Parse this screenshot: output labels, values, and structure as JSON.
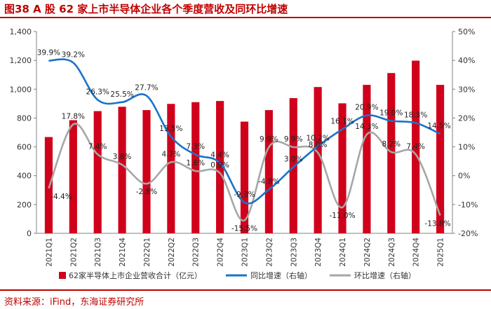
{
  "title": "图38 A 股 62 家上市半导体企业各个季度营收及同环比增速",
  "source": "资料来源：iFind，东海证券研究所",
  "colors": {
    "bar": "#d0021b",
    "yoy": "#1a73c8",
    "qoq": "#a6a6a6",
    "accent": "#c00000"
  },
  "chart_data": {
    "type": "bar",
    "categories": [
      "2021Q1",
      "2021Q2",
      "2021Q3",
      "2021Q4",
      "2022Q1",
      "2022Q2",
      "2022Q3",
      "2022Q4",
      "2023Q1",
      "2023Q2",
      "2023Q3",
      "2023Q4",
      "2024Q1",
      "2024Q2",
      "2024Q3",
      "2024Q4",
      "2025Q1"
    ],
    "series": [
      {
        "name": "62家半导体上市企业营收合计（亿元）",
        "kind": "bar",
        "axis": "left",
        "values": [
          668,
          785,
          848,
          878,
          855,
          898,
          910,
          918,
          775,
          855,
          938,
          1015,
          902,
          1030,
          1112,
          1198,
          1030
        ]
      },
      {
        "name": "同比增速（右轴）",
        "kind": "line",
        "axis": "right",
        "values": [
          39.9,
          39.2,
          26.3,
          25.5,
          27.7,
          13.5,
          7.3,
          4.4,
          -9.3,
          -4.8,
          3.0,
          10.2,
          16.1,
          20.9,
          19.0,
          18.3,
          14.5
        ],
        "labels": [
          "39.9%",
          "39.2%",
          "26.3%",
          "25.5%",
          "27.7%",
          "13.5%",
          "7.3%",
          "4.4%",
          "-9.3%",
          "-4.8%",
          "3.0%",
          "10.2%",
          "16.1%",
          "20.9%",
          "19.0%",
          "18.3%",
          "14.5%"
        ]
      },
      {
        "name": "环比增速（右轴）",
        "kind": "line",
        "axis": "right",
        "values": [
          -4.4,
          17.8,
          7.4,
          3.8,
          -2.8,
          4.7,
          1.6,
          0.9,
          -15.5,
          9.9,
          9.9,
          8.0,
          -11.0,
          14.3,
          8.2,
          7.4,
          -13.8
        ],
        "labels": [
          "-4.4%",
          "17.8%",
          "7.4%",
          "3.8%",
          "-2.8%",
          "4.7%",
          "1.6%",
          "0.9%",
          "-15.5%",
          "9.9%",
          "9.9%",
          "8.0%",
          "-11.0%",
          "14.3%",
          "8.2%",
          "7.4%",
          "-13.8%"
        ]
      }
    ],
    "y_left": {
      "min": 0,
      "max": 1400,
      "ticks": [
        "0",
        "200",
        "400",
        "600",
        "800",
        "1,000",
        "1,200",
        "1,400"
      ]
    },
    "y_right": {
      "min": -20,
      "max": 50,
      "ticks": [
        "-20%",
        "-10%",
        "0%",
        "10%",
        "20%",
        "30%",
        "40%",
        "50%"
      ]
    },
    "legend": [
      "62家半导体上市企业营收合计（亿元）",
      "同比增速（右轴）",
      "环比增速（右轴）"
    ],
    "legend_position": "bottom",
    "grid": false
  }
}
